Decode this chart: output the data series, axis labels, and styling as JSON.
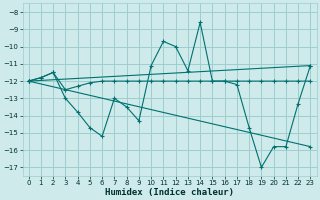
{
  "xlabel": "Humidex (Indice chaleur)",
  "bg_color": "#ceeaea",
  "grid_color": "#9ecece",
  "line_color": "#007070",
  "xlim": [
    -0.5,
    23.5
  ],
  "ylim": [
    -17.5,
    -7.5
  ],
  "yticks": [
    -17,
    -16,
    -15,
    -14,
    -13,
    -12,
    -11,
    -10,
    -9,
    -8
  ],
  "xticks": [
    0,
    1,
    2,
    3,
    4,
    5,
    6,
    7,
    8,
    9,
    10,
    11,
    12,
    13,
    14,
    15,
    16,
    17,
    18,
    19,
    20,
    21,
    22,
    23
  ],
  "series": [
    {
      "x": [
        0,
        1,
        2,
        3,
        4,
        5,
        6,
        7,
        8,
        9,
        10,
        11,
        12,
        13,
        14,
        15,
        16,
        17,
        18,
        19,
        20,
        21,
        22,
        23
      ],
      "y": [
        -12,
        -11.8,
        -11.5,
        -13,
        -13.8,
        -14.7,
        -15.2,
        -13,
        -13.5,
        -14.3,
        -11.1,
        -9.7,
        -10.0,
        -11.4,
        -8.6,
        -12,
        -12,
        -12.2,
        -14.7,
        -17,
        -15.8,
        -15.8,
        -13.3,
        -11.1
      ]
    },
    {
      "x": [
        0,
        1,
        2,
        3,
        4,
        5,
        6,
        7,
        8,
        9,
        10,
        11,
        12,
        13,
        14,
        15,
        16,
        17,
        18,
        19,
        20,
        21,
        22,
        23
      ],
      "y": [
        -12,
        -11.8,
        -11.5,
        -12.5,
        -12.3,
        -12.1,
        -12,
        -12,
        -12,
        -12,
        -12,
        -12,
        -12,
        -12,
        -12,
        -12,
        -12,
        -12,
        -12,
        -12,
        -12,
        -12,
        -12,
        -12
      ]
    },
    {
      "x": [
        0,
        23
      ],
      "y": [
        -12,
        -11.1
      ]
    },
    {
      "x": [
        0,
        23
      ],
      "y": [
        -12,
        -15.8
      ]
    }
  ]
}
